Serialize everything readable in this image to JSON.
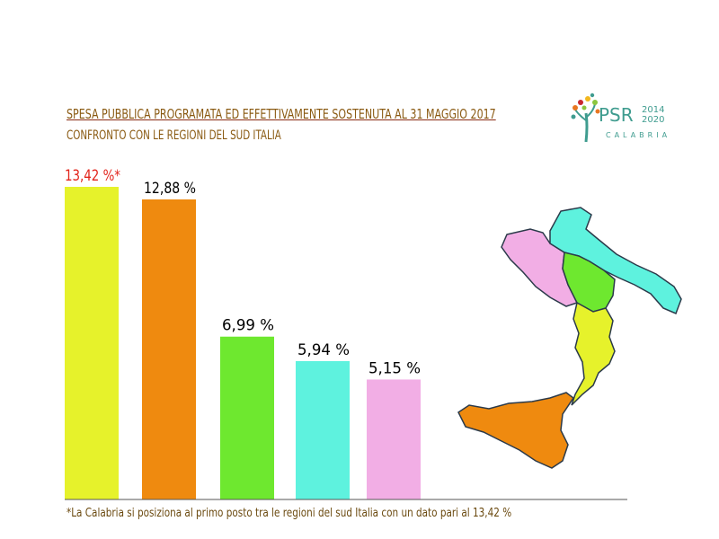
{
  "header": {
    "title": "SPESA PUBBLICA PROGRAMATA ED EFFETTIVAMENTE SOSTENUTA AL 31 MAGGIO 2017",
    "subtitle": "CONFRONTO CON LE REGIONI DEL SUD ITALIA"
  },
  "logo": {
    "brand": "PSR",
    "year_start": "2014",
    "year_end": "2020",
    "region": "CALABRIA"
  },
  "footnote": "*La Calabria si posiziona al primo posto tra le regioni del sud Italia con un dato pari al 13,42 %",
  "chart_data": {
    "type": "bar",
    "title": "SPESA PUBBLICA PROGRAMATA ED EFFETTIVAMENTE SOSTENUTA AL 31 MAGGIO 2017",
    "subtitle": "CONFRONTO CON LE REGIONI DEL SUD ITALIA",
    "xlabel": "",
    "ylabel": "",
    "grid": false,
    "legend": "none",
    "ylim": [
      0,
      13.42
    ],
    "values": [
      13.42,
      12.88,
      6.99,
      5.94,
      5.15
    ],
    "labels": [
      "13,42 %*",
      "12,88 %",
      "6,99 %",
      "5,94 %",
      "5,15 %"
    ],
    "colors": [
      "#e6f22b",
      "#ef8a0f",
      "#6ee82f",
      "#5ef2de",
      "#f2aee5"
    ],
    "label_colors": [
      "#e2231a",
      "#000000",
      "#000000",
      "#000000",
      "#000000"
    ]
  },
  "map_colors": {
    "puglia": "#5ef2de",
    "campania": "#f2aee5",
    "basilicata": "#6ee82f",
    "calabria": "#e6f22b",
    "sicilia": "#ef8a0f",
    "outline": "#2b3a4a"
  }
}
